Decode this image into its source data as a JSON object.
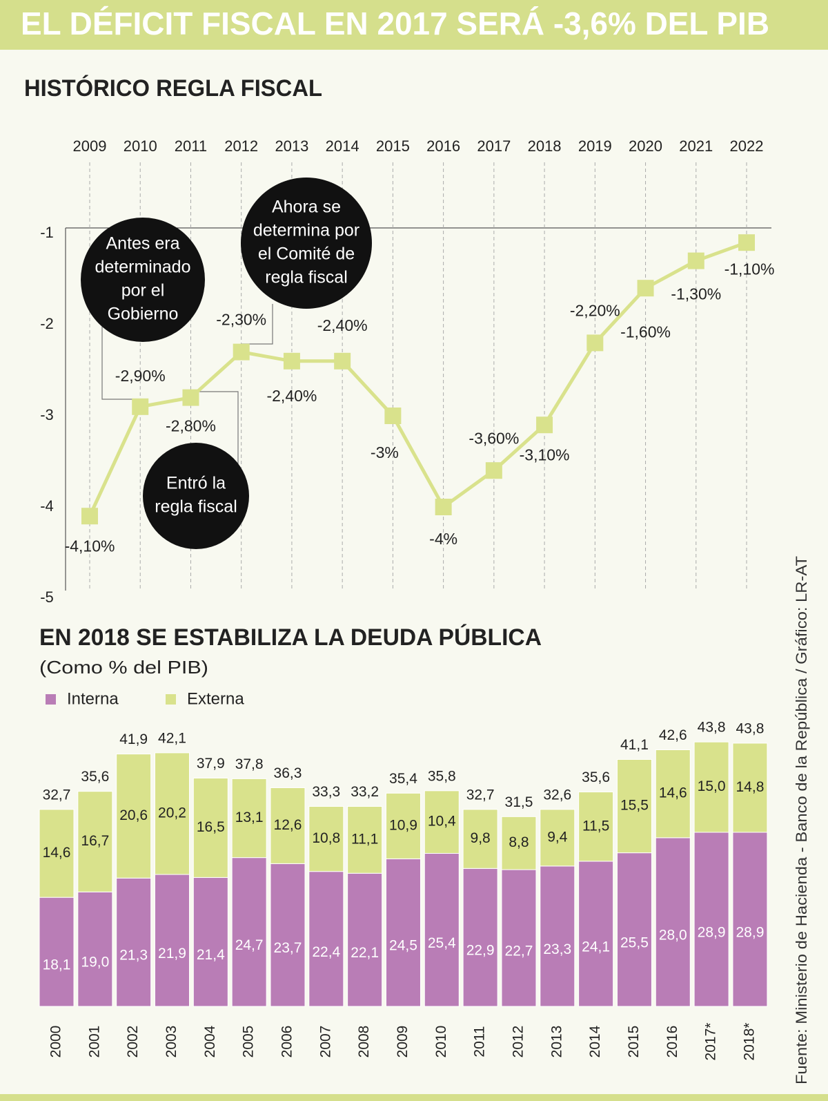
{
  "title": "EL DÉFICIT FISCAL EN 2017 SERÁ -3,6% DEL PIB",
  "source": "Fuente: Ministerio de Hacienda - Banco de la República / Gráfico: LR-AT",
  "chart_data": [
    {
      "type": "line",
      "title": "HISTÓRICO REGLA FISCAL",
      "x": [
        2009,
        2010,
        2011,
        2012,
        2013,
        2014,
        2015,
        2016,
        2017,
        2018,
        2019,
        2020,
        2021,
        2022
      ],
      "values": [
        -4.1,
        -2.9,
        -2.8,
        -2.3,
        -2.4,
        -2.4,
        -3,
        -4,
        -3.6,
        -3.1,
        -2.2,
        -1.6,
        -1.3,
        -1.1
      ],
      "value_labels": [
        "-4,10%",
        "-2,90%",
        "-2,80%",
        "-2,30%",
        "-2,40%",
        "-2,40%",
        "-3%",
        "-4%",
        "-3,60%",
        "-3,10%",
        "-2,20%",
        "-1,60%",
        "-1,30%",
        "-1,10%"
      ],
      "color": "#d9e28c",
      "xlim": [
        2009,
        2022
      ],
      "ylim": [
        -5,
        -1
      ],
      "yticks": [
        -1,
        -2,
        -3,
        -4,
        -5
      ],
      "annotations": [
        {
          "lines": [
            "Antes era",
            "determinado",
            "por el",
            "Gobierno"
          ]
        },
        {
          "lines": [
            "Ahora se",
            "determina por",
            "el Comité de",
            "regla fiscal"
          ]
        },
        {
          "lines": [
            "Entró la",
            "regla fiscal"
          ]
        }
      ]
    },
    {
      "type": "stacked-bar",
      "title": "EN 2018 SE ESTABILIZA LA DEUDA PÚBLICA",
      "subtitle": "(Como % del PIB)",
      "categories": [
        "2000",
        "2001",
        "2002",
        "2003",
        "2004",
        "2005",
        "2006",
        "2007",
        "2008",
        "2009",
        "2010",
        "2011",
        "2012",
        "2013",
        "2014",
        "2015",
        "2016",
        "2017*",
        "2018*"
      ],
      "series": [
        {
          "name": "Interna",
          "color": "#b97db6",
          "values": [
            18.1,
            19.0,
            21.3,
            21.9,
            21.4,
            24.7,
            23.7,
            22.4,
            22.1,
            24.5,
            25.4,
            22.9,
            22.7,
            23.3,
            24.1,
            25.5,
            28.0,
            28.9,
            28.9
          ],
          "value_labels": [
            "18,1",
            "19,0",
            "21,3",
            "21,9",
            "21,4",
            "24,7",
            "23,7",
            "22,4",
            "22,1",
            "24,5",
            "25,4",
            "22,9",
            "22,7",
            "23,3",
            "24,1",
            "25,5",
            "28,0",
            "28,9",
            "28,9"
          ]
        },
        {
          "name": "Externa",
          "color": "#d9e28c",
          "values": [
            14.6,
            16.7,
            20.6,
            20.2,
            16.5,
            13.1,
            12.6,
            10.8,
            11.1,
            10.9,
            10.4,
            9.8,
            8.8,
            9.4,
            11.5,
            15.5,
            14.6,
            15.0,
            14.8
          ],
          "value_labels": [
            "14,6",
            "16,7",
            "20,6",
            "20,2",
            "16,5",
            "13,1",
            "12,6",
            "10,8",
            "11,1",
            "10,9",
            "10,4",
            "9,8",
            "8,8",
            "9,4",
            "11,5",
            "15,5",
            "14,6",
            "15,0",
            "14,8"
          ]
        }
      ],
      "totals": {
        "values": [
          32.7,
          35.6,
          41.9,
          42.1,
          37.9,
          37.8,
          36.3,
          33.3,
          33.2,
          35.4,
          35.8,
          32.7,
          31.5,
          32.6,
          35.6,
          41.1,
          42.6,
          43.8,
          43.8
        ],
        "value_labels": [
          "32,7",
          "35,6",
          "41,9",
          "42,1",
          "37,9",
          "37,8",
          "36,3",
          "33,3",
          "33,2",
          "35,4",
          "35,8",
          "32,7",
          "31,5",
          "32,6",
          "35,6",
          "41,1",
          "42,6",
          "43,8",
          "43,8"
        ]
      }
    }
  ]
}
